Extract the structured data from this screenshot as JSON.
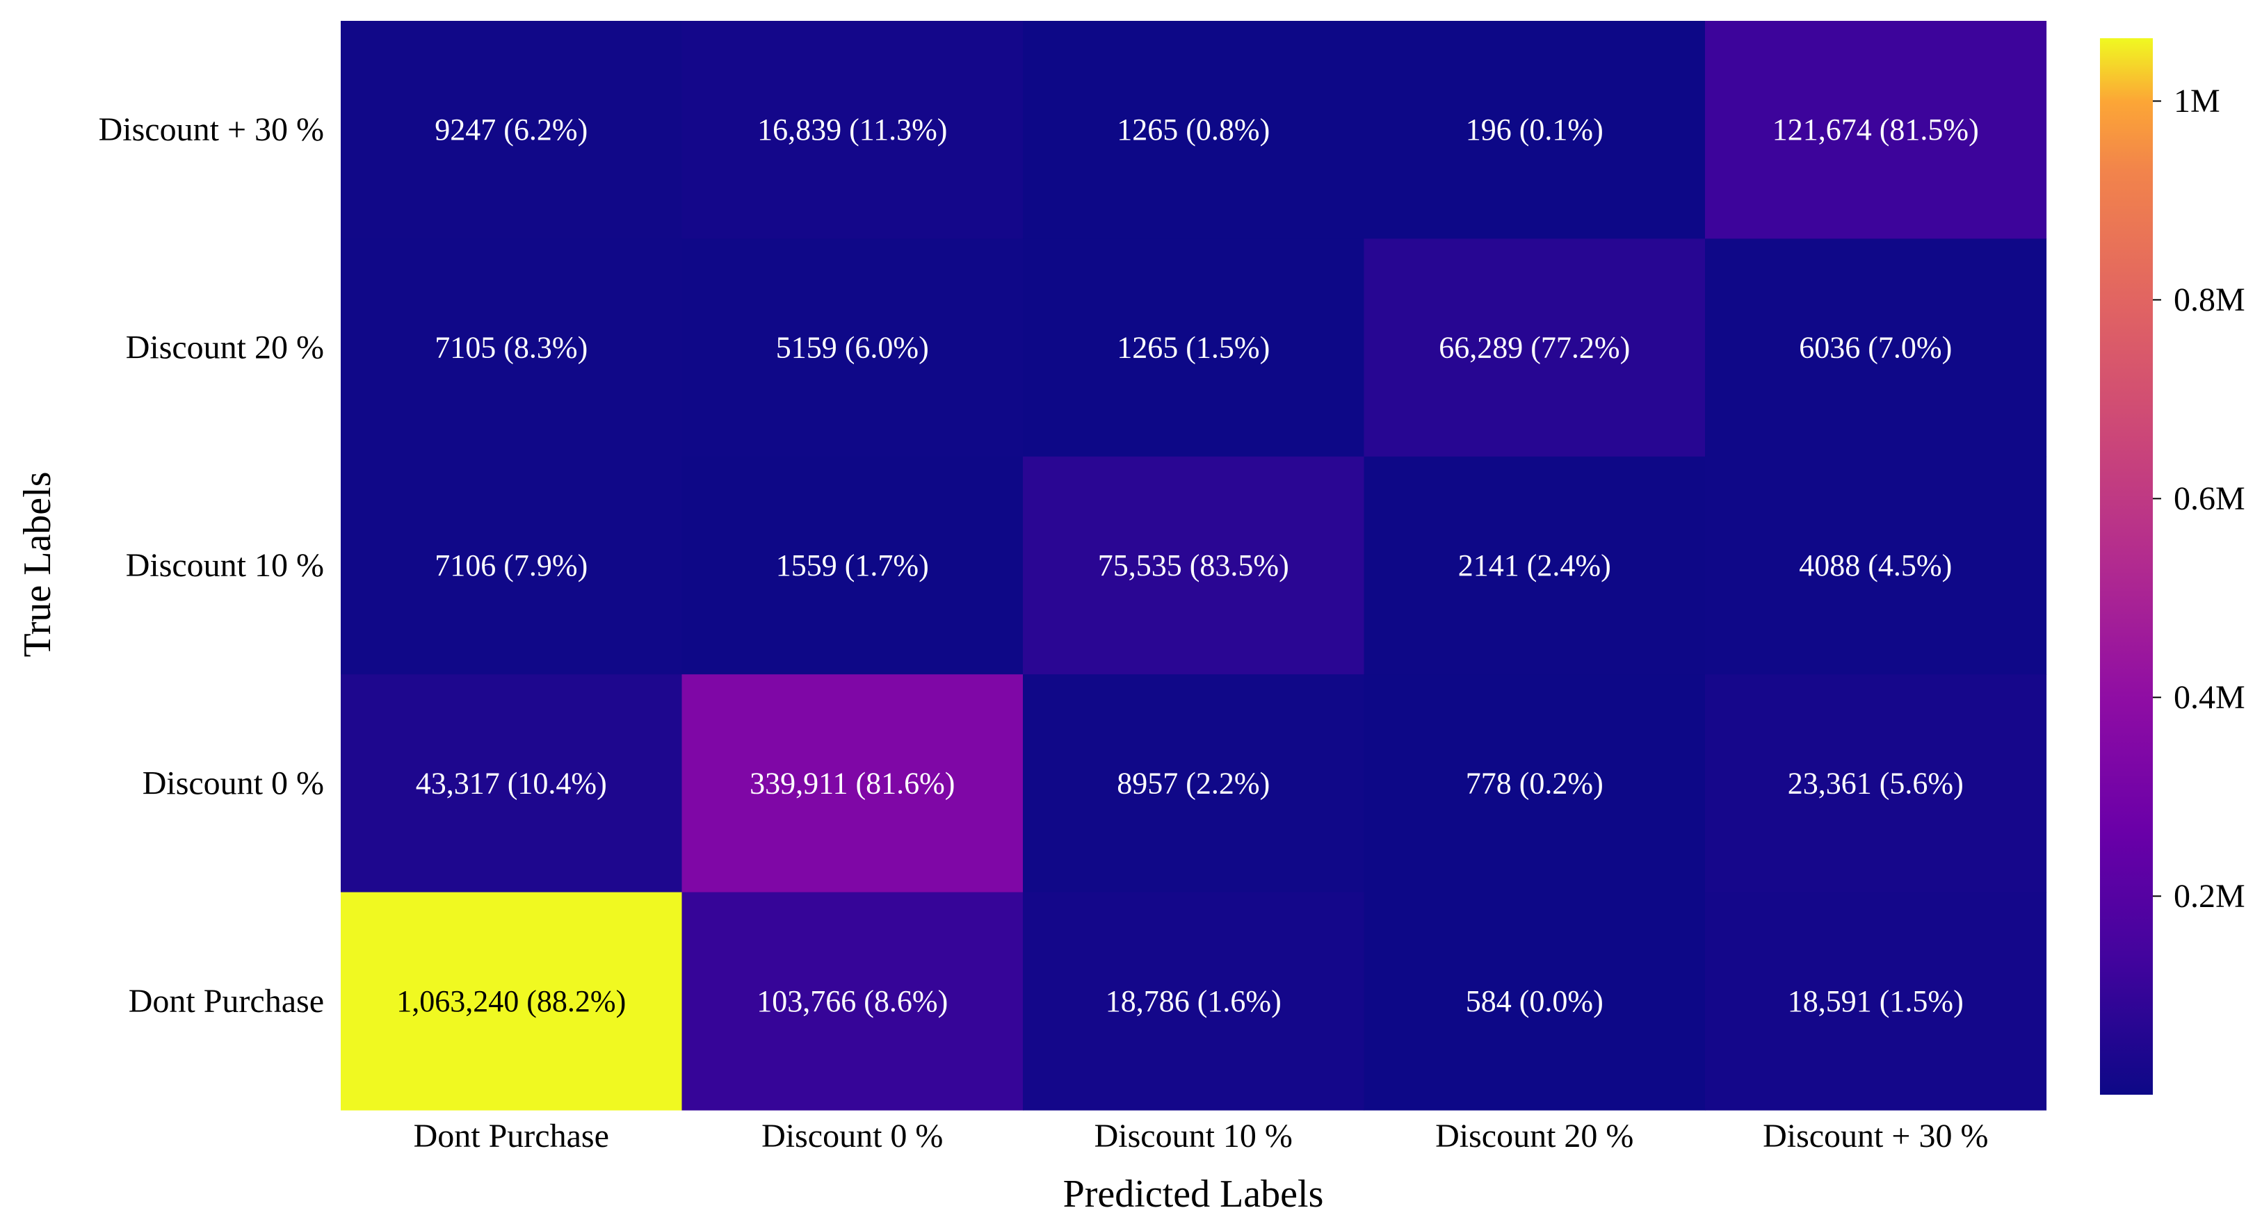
{
  "chart_data": {
    "type": "heatmap",
    "title": "",
    "xlabel": "Predicted Labels",
    "ylabel": "True Labels",
    "x_categories": [
      "Dont Purchase",
      "Discount 0 %",
      "Discount 10 %",
      "Discount 20 %",
      "Discount + 30 %"
    ],
    "y_categories_top_to_bottom": [
      "Discount + 30 %",
      "Discount 20 %",
      "Discount 10 %",
      "Discount 0 %",
      "Dont Purchase"
    ],
    "values": [
      [
        9247,
        16839,
        1265,
        196,
        121674
      ],
      [
        7105,
        5159,
        1265,
        66289,
        6036
      ],
      [
        7106,
        1559,
        75535,
        2141,
        4088
      ],
      [
        43317,
        339911,
        8957,
        778,
        23361
      ],
      [
        1063240,
        103766,
        18786,
        584,
        18591
      ]
    ],
    "cell_labels": [
      [
        "9247 (6.2%)",
        "16,839 (11.3%)",
        "1265 (0.8%)",
        "196 (0.1%)",
        "121,674 (81.5%)"
      ],
      [
        "7105 (8.3%)",
        "5159 (6.0%)",
        "1265 (1.5%)",
        "66,289 (77.2%)",
        "6036 (7.0%)"
      ],
      [
        "7106 (7.9%)",
        "1559 (1.7%)",
        "75,535 (83.5%)",
        "2141 (2.4%)",
        "4088 (4.5%)"
      ],
      [
        "43,317 (10.4%)",
        "339,911 (81.6%)",
        "8957 (2.2%)",
        "778 (0.2%)",
        "23,361 (5.6%)"
      ],
      [
        "1,063,240 (88.2%)",
        "103,766 (8.6%)",
        "18,786 (1.6%)",
        "584 (0.0%)",
        "18,591 (1.5%)"
      ]
    ],
    "colormap": "plasma",
    "color_range": [
      196,
      1063240
    ],
    "colorbar": {
      "ticks": [
        200000,
        400000,
        600000,
        800000,
        1000000
      ],
      "tick_labels": [
        "0.2M",
        "0.4M",
        "0.6M",
        "0.8M",
        "1M"
      ]
    },
    "grid": false
  }
}
